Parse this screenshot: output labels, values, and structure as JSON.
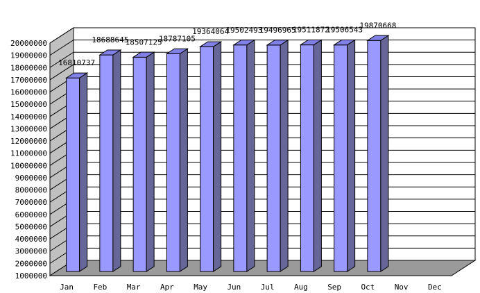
{
  "chart_data": {
    "type": "bar",
    "title": "",
    "xlabel": "",
    "ylabel": "",
    "categories": [
      "Jan",
      "Feb",
      "Mar",
      "Apr",
      "May",
      "Jun",
      "Jul",
      "Aug",
      "Sep",
      "Oct",
      "Nov",
      "Dec"
    ],
    "values": [
      16810737,
      18688645,
      18507125,
      18787105,
      19364064,
      19502493,
      19496965,
      19511872,
      19506543,
      19870668,
      null,
      null
    ],
    "data_labels": [
      "16810737",
      "18688645",
      "18507125",
      "18787105",
      "19364064",
      "19502493",
      "19496965",
      "19511872",
      "19506543",
      "19870668",
      "",
      ""
    ],
    "ylim": [
      1000000,
      20000000
    ],
    "y_ticks": [
      "1000000",
      "2000000",
      "3000000",
      "4000000",
      "5000000",
      "6000000",
      "7000000",
      "8000000",
      "9000000",
      "10000000",
      "11000000",
      "12000000",
      "13000000",
      "14000000",
      "15000000",
      "16000000",
      "17000000",
      "18000000",
      "19000000",
      "20000000"
    ],
    "grid": true,
    "legend": "none",
    "three_d": true,
    "colors": {
      "bar_front": "#9999ff",
      "bar_side": "#666699",
      "bar_top": "#8080e6",
      "wall": "#ffffff",
      "side_wall": "#c0c0c0",
      "floor": "#9a9a9a",
      "grid": "#000000"
    }
  }
}
